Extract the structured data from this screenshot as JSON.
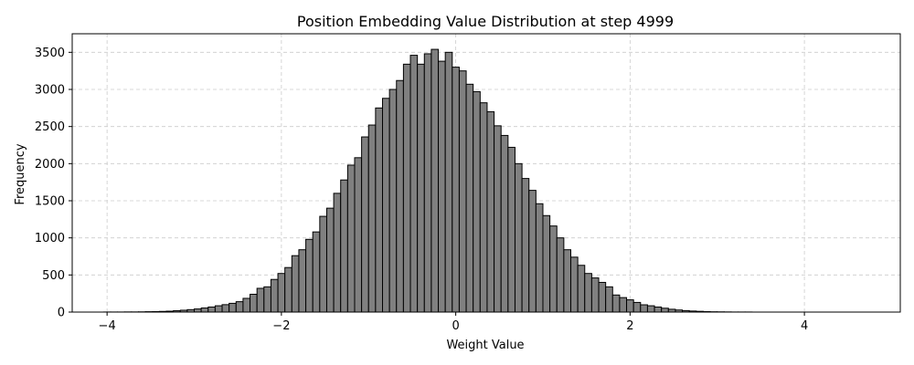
{
  "chart_data": {
    "type": "bar",
    "title": "Position Embedding Value Distribution at step 4999",
    "xlabel": "Weight Value",
    "ylabel": "Frequency",
    "xlim": [
      -4.4,
      5.1
    ],
    "ylim": [
      0,
      3750
    ],
    "xticks": [
      -4,
      -2,
      0,
      2,
      4
    ],
    "xtick_labels": [
      "−4",
      "−2",
      "0",
      "2",
      "4"
    ],
    "yticks": [
      0,
      500,
      1000,
      1500,
      2000,
      2500,
      3000,
      3500
    ],
    "ytick_labels": [
      "0",
      "500",
      "1000",
      "1500",
      "2000",
      "2500",
      "3000",
      "3500"
    ],
    "grid": true,
    "bar_color": "#808080",
    "edge_color": "#000000",
    "bin_width": 0.08,
    "bins_x_start": [
      -4.04,
      -3.96,
      -3.88,
      -3.8,
      -3.72,
      -3.64,
      -3.56,
      -3.48,
      -3.4,
      -3.32,
      -3.24,
      -3.16,
      -3.08,
      -3.0,
      -2.92,
      -2.84,
      -2.76,
      -2.68,
      -2.6,
      -2.52,
      -2.44,
      -2.36,
      -2.28,
      -2.2,
      -2.12,
      -2.04,
      -1.96,
      -1.88,
      -1.8,
      -1.72,
      -1.64,
      -1.56,
      -1.48,
      -1.4,
      -1.32,
      -1.24,
      -1.16,
      -1.08,
      -1.0,
      -0.92,
      -0.84,
      -0.76,
      -0.68,
      -0.6,
      -0.52,
      -0.44,
      -0.36,
      -0.28,
      -0.2,
      -0.12,
      -0.04,
      0.04,
      0.12,
      0.2,
      0.28,
      0.36,
      0.44,
      0.52,
      0.6,
      0.68,
      0.76,
      0.84,
      0.92,
      1.0,
      1.08,
      1.16,
      1.24,
      1.32,
      1.4,
      1.48,
      1.56,
      1.64,
      1.72,
      1.8,
      1.88,
      1.96,
      2.04,
      2.12,
      2.2,
      2.28,
      2.36,
      2.44,
      2.52,
      2.6,
      2.68,
      2.76,
      2.84,
      2.92,
      3.0,
      3.08,
      3.16,
      3.24,
      3.32,
      3.4,
      3.48,
      3.56,
      3.64,
      3.72,
      3.8,
      3.88,
      3.96,
      4.04,
      4.12,
      4.2,
      4.28,
      4.36,
      4.44,
      4.52,
      4.6
    ],
    "values": [
      1,
      1,
      1,
      2,
      2,
      3,
      5,
      6,
      9,
      12,
      18,
      25,
      33,
      42,
      55,
      68,
      85,
      100,
      118,
      140,
      185,
      240,
      320,
      340,
      440,
      520,
      600,
      760,
      840,
      980,
      1080,
      1290,
      1400,
      1600,
      1780,
      1980,
      2080,
      2360,
      2520,
      2750,
      2880,
      3000,
      3120,
      3340,
      3460,
      3340,
      3480,
      3540,
      3380,
      3500,
      3300,
      3250,
      3070,
      2970,
      2820,
      2700,
      2510,
      2380,
      2220,
      2000,
      1800,
      1640,
      1460,
      1300,
      1160,
      1000,
      840,
      740,
      630,
      520,
      460,
      400,
      340,
      230,
      195,
      165,
      130,
      98,
      85,
      68,
      52,
      38,
      28,
      20,
      14,
      10,
      6,
      4,
      3,
      2,
      1,
      1,
      1,
      0,
      0,
      0,
      0,
      0,
      0,
      0,
      0,
      0,
      0,
      0,
      0,
      0,
      0,
      0,
      0
    ]
  }
}
